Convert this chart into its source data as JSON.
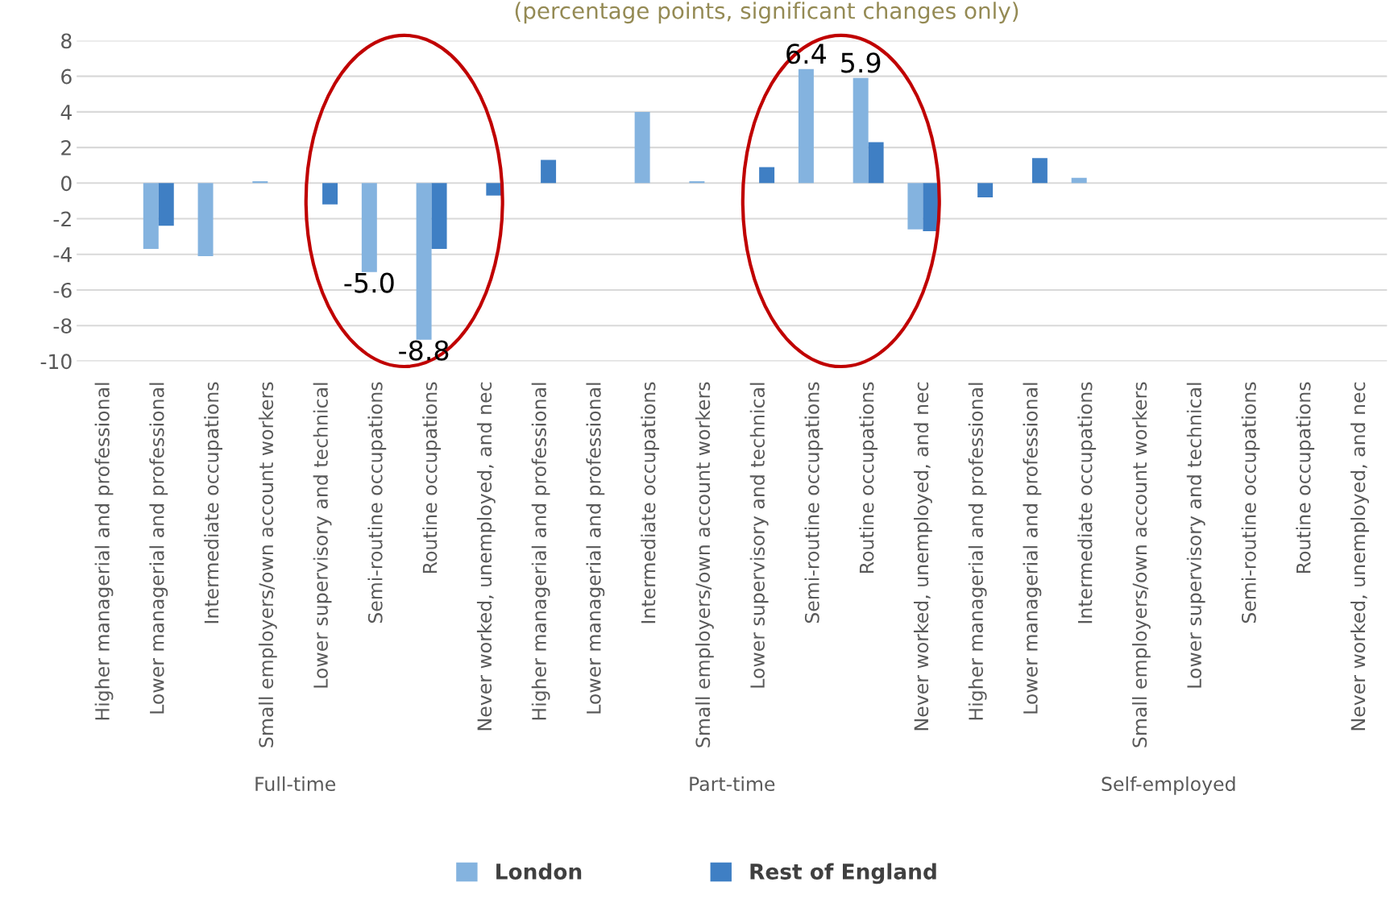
{
  "chart_data": {
    "type": "bar",
    "title": "(percentage points, significant changes only)",
    "categories": [
      "Higher managerial and professional",
      "Lower managerial and professional",
      "Intermediate occupations",
      "Small employers/own account workers",
      "Lower supervisory and technical",
      "Semi-routine occupations",
      "Routine occupations",
      "Never worked, unemployed, and nec",
      "Higher managerial and professional",
      "Lower managerial and professional",
      "Intermediate occupations",
      "Small employers/own account workers",
      "Lower supervisory and technical",
      "Semi-routine occupations",
      "Routine occupations",
      "Never worked, unemployed, and nec",
      "Higher managerial and professional",
      "Lower managerial and professional",
      "Intermediate occupations",
      "Small employers/own account workers",
      "Lower supervisory and technical",
      "Semi-routine occupations",
      "Routine occupations",
      "Never worked, unemployed, and nec"
    ],
    "series": [
      {
        "name": "London",
        "color": "#84b3df",
        "values": [
          null,
          -3.7,
          -4.1,
          0.1,
          null,
          -5.0,
          -8.8,
          null,
          null,
          null,
          4.0,
          0.1,
          null,
          6.4,
          5.9,
          -2.6,
          null,
          null,
          0.3,
          null,
          null,
          null,
          null,
          null
        ],
        "value_labels": [
          null,
          null,
          null,
          null,
          null,
          "-5.0",
          "-8.8",
          null,
          null,
          null,
          null,
          null,
          null,
          "6.4",
          "5.9",
          null,
          null,
          null,
          null,
          null,
          null,
          null,
          null,
          null
        ]
      },
      {
        "name": "Rest of England",
        "color": "#3f7fc4",
        "values": [
          null,
          -2.4,
          null,
          null,
          -1.2,
          null,
          -3.7,
          -0.7,
          1.3,
          null,
          null,
          null,
          0.9,
          null,
          2.3,
          -2.7,
          -0.8,
          1.4,
          null,
          null,
          null,
          null,
          null,
          null
        ]
      }
    ],
    "annotations": [
      "Full-time",
      "Part-time",
      "Self-employed"
    ],
    "ylim": [
      -10,
      8
    ],
    "yticks": [
      -10,
      -8,
      -6,
      -4,
      -2,
      0,
      2,
      4,
      6,
      8
    ],
    "grid": "y",
    "legend": "bottom"
  }
}
